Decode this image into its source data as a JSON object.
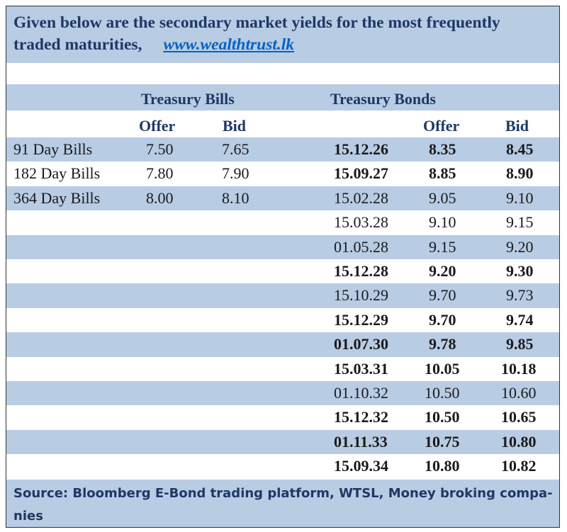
{
  "header": {
    "title": "Given below are the secondary market yields for the most frequently traded maturities,",
    "link": "www.wealthtrust.lk"
  },
  "table": {
    "bills_heading": "Treasury Bills",
    "bonds_heading": "Treasury Bonds",
    "bills_columns": [
      "Offer",
      "Bid"
    ],
    "bonds_columns": [
      "Offer",
      "Bid"
    ],
    "bills": [
      [
        "91 Day Bills",
        "7.50",
        "7.65"
      ],
      [
        "182 Day Bills",
        "7.80",
        "7.90"
      ],
      [
        "364 Day Bills",
        "8.00",
        "8.10"
      ]
    ],
    "bonds": [
      {
        "maturity": "15.12.26",
        "offer": "8.35",
        "bid": "8.45",
        "bold": true
      },
      {
        "maturity": "15.09.27",
        "offer": "8.85",
        "bid": "8.90",
        "bold": true
      },
      {
        "maturity": "15.02.28",
        "offer": "9.05",
        "bid": "9.10",
        "bold": false
      },
      {
        "maturity": "15.03.28",
        "offer": "9.10",
        "bid": "9.15",
        "bold": false
      },
      {
        "maturity": "01.05.28",
        "offer": "9.15",
        "bid": "9.20",
        "bold": false
      },
      {
        "maturity": "15.12.28",
        "offer": "9.20",
        "bid": "9.30",
        "bold": true
      },
      {
        "maturity": "15.10.29",
        "offer": "9.70",
        "bid": "9.73",
        "bold": false
      },
      {
        "maturity": "15.12.29",
        "offer": "9.70",
        "bid": "9.74",
        "bold": true
      },
      {
        "maturity": "01.07.30",
        "offer": "9.78",
        "bid": "9.85",
        "bold": true
      },
      {
        "maturity": "15.03.31",
        "offer": "10.05",
        "bid": "10.18",
        "bold": true
      },
      {
        "maturity": "01.10.32",
        "offer": "10.50",
        "bid": "10.60",
        "bold": false
      },
      {
        "maturity": "15.12.32",
        "offer": "10.50",
        "bid": "10.65",
        "bold": true
      },
      {
        "maturity": "01.11.33",
        "offer": "10.75",
        "bid": "10.80",
        "bold": true
      },
      {
        "maturity": "15.09.34",
        "offer": "10.80",
        "bid": "10.82",
        "bold": true
      }
    ]
  },
  "footer": {
    "source": "Source: Bloomberg E-Bond trading platform, WTSL, Money broking compa-nies"
  }
}
